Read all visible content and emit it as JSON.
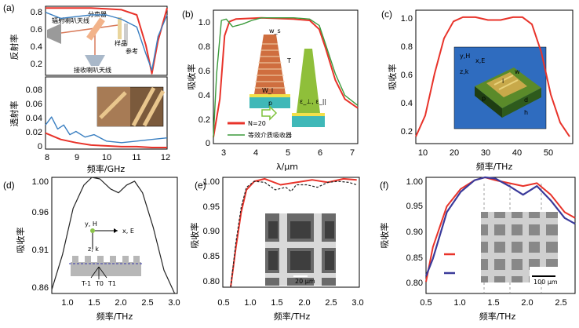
{
  "panels": {
    "a": {
      "label": "(a)",
      "top_ylabel": "反射率",
      "bottom_ylabel": "透射率",
      "xlabel": "频率/GHz",
      "top_yticks": [
        "0.8",
        "0.6",
        "0.4",
        "0.2"
      ],
      "bottom_yticks": [
        "0.08",
        "0.06",
        "0.04",
        "0.02",
        "0"
      ],
      "xticks": [
        "8",
        "9",
        "10",
        "11",
        "12"
      ],
      "inset_labels": {
        "splitter": "分束器",
        "tx_antenna": "辐射喇叭天线",
        "sample": "样品",
        "reference": "参考",
        "rx_antenna": "接收喇叭天线"
      }
    },
    "b": {
      "label": "(b)",
      "ylabel": "吸收率",
      "xlabel": "λ/μm",
      "yticks": [
        "1.0",
        "0.8",
        "0.6",
        "0.4",
        "0.2",
        "0"
      ],
      "xticks": [
        "3",
        "4",
        "5",
        "6",
        "7"
      ],
      "legend": [
        "N=20",
        "等效介质吸收器"
      ],
      "inset_labels": {
        "ws": "w_s",
        "T": "T",
        "wl": "W_l",
        "p": "p",
        "eps": "ε_⊥, ε_||"
      }
    },
    "c": {
      "label": "(c)",
      "ylabel": "吸收率",
      "xlabel": "频率/THz",
      "yticks": [
        "1.0",
        "0.8",
        "0.6",
        "0.4",
        "0.2"
      ],
      "xticks": [
        "10",
        "20",
        "30",
        "40",
        "50"
      ],
      "inset_labels": {
        "yh": "y,H",
        "xe": "x,E",
        "zk": "z,k",
        "l": "l",
        "w": "w",
        "p": "p",
        "d": "d",
        "h": "h"
      }
    },
    "d": {
      "label": "(d)",
      "ylabel": "吸收率",
      "xlabel": "频率/THz",
      "yticks": [
        "1.00",
        "0.96",
        "0.91",
        "0.86"
      ],
      "xticks": [
        "1.0",
        "1.5",
        "2.0",
        "2.5",
        "3.0"
      ],
      "inset_labels": {
        "yh": "y, H",
        "xe": "x, E",
        "zk": "z, k",
        "t_minus": "T-1",
        "t0": "T0",
        "t1": "T1"
      }
    },
    "e": {
      "label": "(e)",
      "ylabel": "吸收率",
      "xlabel": "频率/THz",
      "yticks": [
        "1.00",
        "0.95",
        "0.90",
        "0.85",
        "0.80"
      ],
      "xticks": [
        "0.5",
        "1.0",
        "1.5",
        "2.0",
        "2.5",
        "3.0"
      ],
      "scale_bar": "20 μm"
    },
    "f": {
      "label": "(f)",
      "ylabel": "吸收率",
      "xlabel": "频率/THz",
      "yticks": [
        "1.00",
        "0.95",
        "0.90",
        "0.85",
        "0.80"
      ],
      "xticks": [
        "0.5",
        "1.0",
        "1.5",
        "2.0",
        "2.5"
      ],
      "scale_bar": "100 μm"
    }
  },
  "colors": {
    "red": "#e8332a",
    "blue": "#3a7fc1",
    "green": "#3b9a3b",
    "navy": "#3a3a9a",
    "black": "#222222"
  },
  "chart_data": [
    {
      "type": "line",
      "panel": "a-top",
      "xlim": [
        8,
        12
      ],
      "ylim": [
        0.1,
        0.9
      ],
      "series": [
        {
          "color": "red",
          "x": [
            8,
            8.5,
            9,
            9.5,
            10,
            10.5,
            11,
            11.3,
            11.5,
            11.7,
            12
          ],
          "values": [
            0.88,
            0.88,
            0.88,
            0.88,
            0.87,
            0.86,
            0.8,
            0.45,
            0.12,
            0.5,
            0.88
          ]
        },
        {
          "color": "blue",
          "x": [
            8,
            8.5,
            9,
            9.5,
            10,
            10.5,
            11,
            11.3,
            11.5,
            11.7,
            12
          ],
          "values": [
            0.83,
            0.76,
            0.78,
            0.8,
            0.8,
            0.75,
            0.66,
            0.35,
            0.16,
            0.55,
            0.8
          ]
        }
      ]
    },
    {
      "type": "line",
      "panel": "a-bottom",
      "xlim": [
        8,
        12
      ],
      "ylim": [
        0,
        0.09
      ],
      "series": [
        {
          "color": "blue",
          "x": [
            8,
            8.2,
            8.4,
            8.6,
            8.8,
            9,
            9.3,
            9.6,
            10,
            10.5,
            11,
            11.5,
            12
          ],
          "values": [
            0.03,
            0.04,
            0.025,
            0.03,
            0.018,
            0.022,
            0.015,
            0.018,
            0.01,
            0.008,
            0.01,
            0.012,
            0.014
          ]
        },
        {
          "color": "red",
          "x": [
            8,
            8.5,
            9,
            9.5,
            10,
            10.5,
            11,
            11.5,
            12
          ],
          "values": [
            0.02,
            0.012,
            0.008,
            0.005,
            0.004,
            0.003,
            0.003,
            0.002,
            0.002
          ]
        }
      ]
    },
    {
      "type": "line",
      "panel": "b",
      "xlim": [
        2.5,
        7
      ],
      "ylim": [
        0,
        1.05
      ],
      "series": [
        {
          "name": "N=20",
          "color": "red",
          "x": [
            2.5,
            2.7,
            2.85,
            3,
            3.2,
            4,
            5,
            5.5,
            5.8,
            6,
            6.3,
            6.6,
            7
          ],
          "values": [
            0.05,
            0.35,
            0.85,
            0.96,
            0.98,
            0.99,
            0.98,
            0.97,
            0.9,
            0.75,
            0.5,
            0.35,
            0.28
          ]
        },
        {
          "name": "等效介质吸收器",
          "color": "green",
          "x": [
            2.5,
            2.6,
            2.75,
            2.9,
            3.1,
            3.4,
            3.7,
            4,
            5,
            5.5,
            5.8,
            6,
            6.3,
            6.6,
            7
          ],
          "values": [
            0.05,
            0.55,
            0.97,
            0.98,
            0.92,
            0.94,
            0.97,
            0.99,
            0.99,
            0.98,
            0.93,
            0.78,
            0.55,
            0.38,
            0.3
          ]
        }
      ]
    },
    {
      "type": "line",
      "panel": "c",
      "xlim": [
        7,
        57
      ],
      "ylim": [
        0.1,
        1.05
      ],
      "series": [
        {
          "color": "red",
          "x": [
            7,
            10,
            13,
            16,
            19,
            22,
            26,
            30,
            34,
            38,
            41,
            44,
            47,
            50,
            53,
            56
          ],
          "values": [
            0.15,
            0.3,
            0.6,
            0.85,
            0.97,
            1.0,
            1.0,
            0.98,
            0.98,
            1.0,
            1.0,
            0.95,
            0.75,
            0.45,
            0.25,
            0.15
          ]
        }
      ]
    },
    {
      "type": "line",
      "panel": "d",
      "xlim": [
        0.7,
        3.05
      ],
      "ylim": [
        0.85,
        1.0
      ],
      "series": [
        {
          "color": "black",
          "x": [
            0.7,
            0.9,
            1.1,
            1.3,
            1.45,
            1.6,
            1.8,
            1.95,
            2.1,
            2.25,
            2.4,
            2.6,
            2.8,
            3.0
          ],
          "values": [
            0.855,
            0.9,
            0.96,
            0.99,
            1.0,
            0.998,
            0.985,
            0.98,
            0.99,
            0.995,
            0.98,
            0.935,
            0.88,
            0.85
          ]
        }
      ]
    },
    {
      "type": "line",
      "panel": "e",
      "xlim": [
        0.4,
        3.0
      ],
      "ylim": [
        0.78,
        1.0
      ],
      "series": [
        {
          "color": "red",
          "x": [
            0.55,
            0.65,
            0.75,
            0.85,
            1.0,
            1.2,
            1.5,
            1.8,
            2.1,
            2.4,
            2.7,
            2.95
          ],
          "values": [
            0.78,
            0.86,
            0.93,
            0.975,
            0.992,
            0.997,
            0.985,
            0.99,
            0.995,
            0.99,
            0.997,
            0.995
          ]
        },
        {
          "color": "black",
          "x": [
            0.55,
            0.65,
            0.75,
            0.85,
            1.0,
            1.2,
            1.4,
            1.6,
            1.7,
            1.8,
            2.0,
            2.2,
            2.4,
            2.6,
            2.8,
            2.95
          ],
          "values": [
            0.78,
            0.87,
            0.94,
            0.98,
            0.992,
            0.99,
            0.975,
            0.98,
            0.972,
            0.985,
            0.985,
            0.98,
            0.99,
            0.992,
            0.99,
            0.985
          ]
        }
      ]
    },
    {
      "type": "line",
      "panel": "f",
      "xlim": [
        0.5,
        2.65
      ],
      "ylim": [
        0.8,
        1.0
      ],
      "series": [
        {
          "color": "red",
          "x": [
            0.5,
            0.6,
            0.8,
            1.0,
            1.2,
            1.35,
            1.5,
            1.7,
            1.9,
            2.1,
            2.3,
            2.5,
            2.65
          ],
          "values": [
            0.82,
            0.88,
            0.95,
            0.98,
            0.995,
            1.0,
            0.995,
            0.99,
            0.985,
            0.99,
            0.97,
            0.94,
            0.93
          ]
        },
        {
          "color": "navy",
          "x": [
            0.5,
            0.6,
            0.8,
            1.0,
            1.2,
            1.35,
            1.5,
            1.7,
            1.9,
            2.1,
            2.3,
            2.5,
            2.65
          ],
          "values": [
            0.83,
            0.86,
            0.94,
            0.975,
            0.995,
            1.0,
            0.998,
            0.985,
            0.97,
            0.985,
            0.96,
            0.93,
            0.92
          ]
        }
      ]
    }
  ]
}
